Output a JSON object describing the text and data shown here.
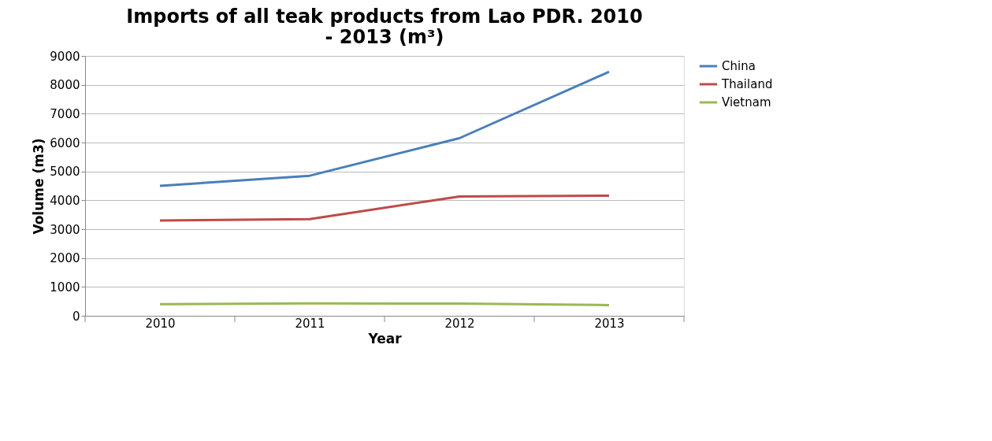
{
  "chart_data": {
    "type": "line",
    "title": "Imports of all teak products from Lao PDR. 2010 - 2013 (m³)",
    "xlabel": "Year",
    "ylabel": "Volume (m3)",
    "categories": [
      "2010",
      "2011",
      "2012",
      "2013"
    ],
    "series": [
      {
        "name": "China",
        "color": "#4a7ebb",
        "values": [
          4500,
          4850,
          6150,
          8450
        ]
      },
      {
        "name": "Thailand",
        "color": "#be4b48",
        "values": [
          3300,
          3350,
          4130,
          4160
        ]
      },
      {
        "name": "Vietnam",
        "color": "#98b954",
        "values": [
          400,
          430,
          420,
          370
        ]
      }
    ],
    "ylim": [
      0,
      9000
    ],
    "yticks": [
      0,
      1000,
      2000,
      3000,
      4000,
      5000,
      6000,
      7000,
      8000,
      9000
    ],
    "grid": "y",
    "legend": "right",
    "marker": "none",
    "line_style": "solid"
  }
}
